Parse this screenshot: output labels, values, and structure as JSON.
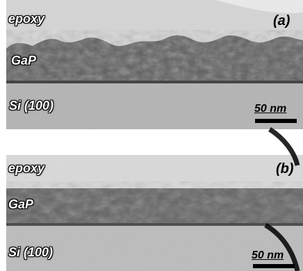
{
  "panel_a": {
    "epoxy_label": "epoxy",
    "layer_label": "GaP",
    "substrate_label": "Si (100)",
    "panel_label": "(a)",
    "scale_label": "50 nm"
  },
  "panel_b": {
    "epoxy_label": "epoxy",
    "layer_label": "GaP",
    "substrate_label": "Si (100)",
    "panel_label": "(b)",
    "scale_label": "50 nm"
  },
  "colors": {
    "epoxy": "#d2d2d2",
    "gap_layer": "#4a4a4a",
    "substrate": "#b8b8b8",
    "watermark_arc": "#000000"
  }
}
